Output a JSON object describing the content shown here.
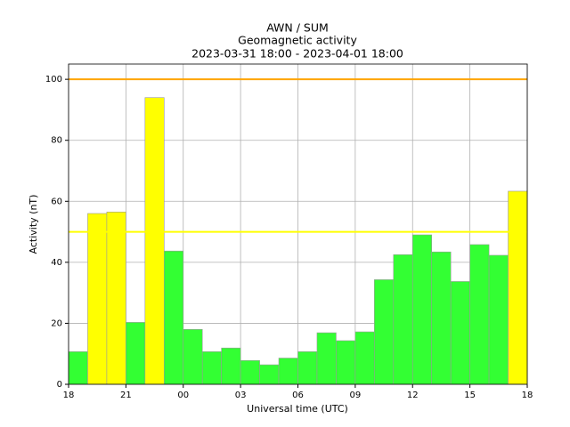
{
  "chart_data": {
    "type": "histogram",
    "title": [
      "AWN / SUM",
      "Geomagnetic activity",
      "2023-03-31 18:00 - 2023-04-01 18:00"
    ],
    "xlabel": "Universal time (UTC)",
    "ylabel": "Activity (nT)",
    "bins": [
      18,
      19,
      20,
      21,
      22,
      23,
      24,
      25,
      26,
      27,
      28,
      29,
      30,
      31,
      32,
      33,
      34,
      35,
      36,
      37,
      38,
      39,
      40,
      41,
      42
    ],
    "values": [
      10.7,
      56,
      56.5,
      20.3,
      94,
      43.7,
      18,
      10.7,
      11.9,
      7.8,
      6.4,
      8.6,
      10.7,
      16.9,
      14.3,
      17.2,
      34.3,
      42.5,
      49,
      43.4,
      33.7,
      45.8,
      42.3,
      63.3
    ],
    "colors": [
      "#33ff33",
      "#ffff00",
      "#ffff00",
      "#33ff33",
      "#ffff00",
      "#33ff33",
      "#33ff33",
      "#33ff33",
      "#33ff33",
      "#33ff33",
      "#33ff33",
      "#33ff33",
      "#33ff33",
      "#33ff33",
      "#33ff33",
      "#33ff33",
      "#33ff33",
      "#33ff33",
      "#33ff33",
      "#33ff33",
      "#33ff33",
      "#33ff33",
      "#33ff33",
      "#ffff00"
    ],
    "thresholds": [
      {
        "value": 50,
        "color": "#ffff00"
      },
      {
        "value": 100,
        "color": "#ffa500"
      }
    ],
    "xlim": [
      18,
      42
    ],
    "ylim": [
      0,
      105
    ],
    "xticks": [
      18,
      21,
      {
        "value": 24,
        "label": "00"
      },
      {
        "value": 27,
        "label": "03"
      },
      {
        "value": 30,
        "label": "06"
      },
      {
        "value": 33,
        "label": "09"
      },
      {
        "value": 36,
        "label": "12"
      },
      {
        "value": 39,
        "label": "15"
      },
      {
        "value": 42,
        "label": "18"
      }
    ],
    "yticks": [
      0,
      20,
      40,
      60,
      80,
      100
    ],
    "grid": true
  }
}
